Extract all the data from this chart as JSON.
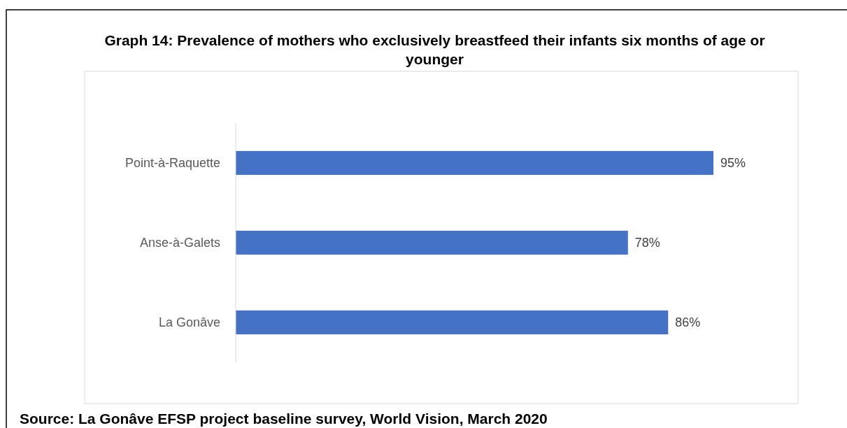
{
  "chart_data": {
    "type": "bar",
    "orientation": "horizontal",
    "title": "Graph 14: Prevalence of mothers who exclusively breastfeed their infants six months of age or younger",
    "categories": [
      "Point-à-Raquette",
      "Anse-à-Galets",
      "La Gonâve"
    ],
    "values": [
      95,
      78,
      86
    ],
    "color": "#4472c4",
    "value_labels": [
      "95%",
      "78%",
      "86%"
    ],
    "annotations": [
      "Source: La Gonâve EFSP project baseline survey, World Vision, March 2020"
    ]
  }
}
